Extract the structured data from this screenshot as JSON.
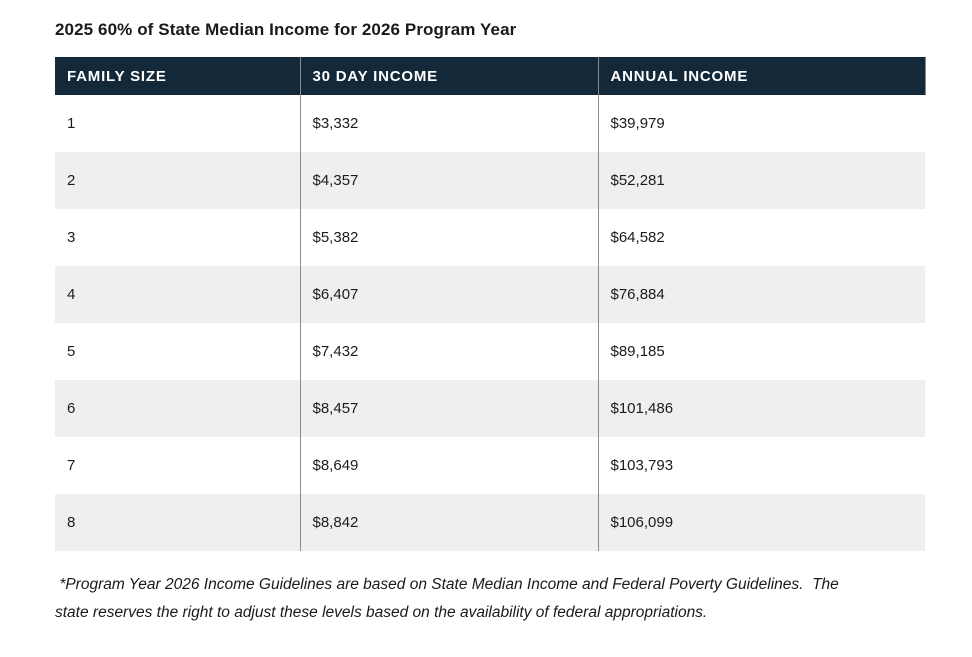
{
  "title": "2025 60% of State Median Income for 2026 Program Year",
  "table": {
    "columns": [
      "FAMILY SIZE",
      "30 DAY INCOME",
      "ANNUAL INCOME"
    ],
    "rows": [
      {
        "size": "1",
        "monthly": "$3,332",
        "annual": "$39,979"
      },
      {
        "size": "2",
        "monthly": "$4,357",
        "annual": "$52,281"
      },
      {
        "size": "3",
        "monthly": "$5,382",
        "annual": "$64,582"
      },
      {
        "size": "4",
        "monthly": "$6,407",
        "annual": "$76,884"
      },
      {
        "size": "5",
        "monthly": "$7,432",
        "annual": "$89,185"
      },
      {
        "size": "6",
        "monthly": "$8,457",
        "annual": "$101,486"
      },
      {
        "size": "7",
        "monthly": "$8,649",
        "annual": "$103,793"
      },
      {
        "size": "8",
        "monthly": "$8,842",
        "annual": "$106,099"
      }
    ]
  },
  "footnote": " *Program Year 2026 Income Guidelines are based on State Median Income and Federal Poverty Guidelines.  The state reserves the right to adjust these levels based on the availability of federal appropriations.",
  "colors": {
    "header_bg": "#13293a",
    "header_text": "#ffffff",
    "stripe": "#efefef",
    "divider": "#8b8b8b",
    "body_text": "#1b1b1b"
  }
}
